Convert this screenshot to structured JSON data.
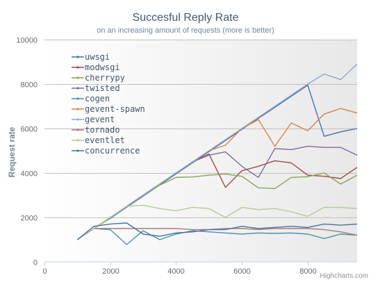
{
  "chart_data": {
    "type": "line",
    "title": "Succesful Reply Rate",
    "subtitle": "on an increasing amount of requests (more is better)",
    "xlabel": "",
    "ylabel": "Request rate",
    "xlim": [
      0,
      9500
    ],
    "ylim": [
      0,
      10000
    ],
    "x_ticks": [
      0,
      2000,
      4000,
      6000,
      8000
    ],
    "y_ticks": [
      0,
      2000,
      4000,
      6000,
      8000,
      10000
    ],
    "grid": "horizontal",
    "legend_position": "top-left",
    "credits": "Highcharts.com",
    "x": [
      1000,
      1500,
      2000,
      2500,
      3000,
      3500,
      4000,
      4500,
      5000,
      5500,
      6000,
      6500,
      7000,
      7500,
      8000,
      8500,
      9000,
      9500
    ],
    "series": [
      {
        "name": "uwsgi",
        "color": "#4572a7",
        "values": [
          1000,
          1500,
          1960,
          2460,
          2960,
          3460,
          3960,
          4460,
          4960,
          5460,
          5960,
          6460,
          6950,
          7450,
          7950,
          5650,
          5850,
          6000
        ]
      },
      {
        "name": "modwsgi",
        "color": "#aa4643",
        "values": [
          1000,
          1500,
          2000,
          2500,
          3000,
          3500,
          4000,
          4500,
          4850,
          3350,
          4100,
          4300,
          4550,
          4450,
          3900,
          3850,
          3750,
          4250
        ]
      },
      {
        "name": "cherrypy",
        "color": "#89a54e",
        "values": [
          1000,
          1500,
          2000,
          2500,
          3000,
          3450,
          3800,
          3820,
          3900,
          3950,
          3850,
          3330,
          3300,
          3800,
          3830,
          4000,
          3500,
          3900
        ]
      },
      {
        "name": "twisted",
        "color": "#80699b",
        "values": [
          1000,
          1500,
          2000,
          2500,
          3000,
          3500,
          4000,
          4500,
          4800,
          4950,
          4300,
          3800,
          5100,
          5050,
          5200,
          5150,
          5150,
          4800
        ]
      },
      {
        "name": "cogen",
        "color": "#3d96ae",
        "values": [
          1000,
          1500,
          1450,
          780,
          1400,
          1000,
          1250,
          1400,
          1350,
          1300,
          1250,
          1300,
          1280,
          1300,
          1250,
          1050,
          1250,
          1200
        ]
      },
      {
        "name": "gevent-spawn",
        "color": "#db843d",
        "values": [
          1000,
          1500,
          2000,
          2500,
          3000,
          3500,
          4000,
          4500,
          5000,
          5250,
          6000,
          6400,
          5200,
          6250,
          5900,
          6650,
          6900,
          6700
        ]
      },
      {
        "name": "gevent",
        "color": "#92a8cd",
        "values": [
          1000,
          1500,
          2000,
          2500,
          3000,
          3500,
          4000,
          4500,
          5000,
          5500,
          6000,
          6500,
          7000,
          7500,
          8000,
          8450,
          8200,
          8900
        ]
      },
      {
        "name": "tornado",
        "color": "#a47d7c",
        "values": [
          1000,
          1500,
          1500,
          1500,
          1500,
          1500,
          1500,
          1450,
          1450,
          1500,
          1500,
          1450,
          1500,
          1500,
          1500,
          1450,
          1350,
          1200
        ]
      },
      {
        "name": "eventlet",
        "color": "#b5ca92",
        "values": [
          1000,
          1500,
          2000,
          2500,
          2550,
          2400,
          2300,
          2450,
          2400,
          2000,
          2450,
          2350,
          2400,
          2250,
          2050,
          2450,
          2450,
          2400
        ]
      },
      {
        "name": "concurrence",
        "color": "#4572a7",
        "values": [
          1000,
          1600,
          1700,
          1750,
          1250,
          1150,
          1300,
          1350,
          1450,
          1450,
          1600,
          1500,
          1550,
          1600,
          1550,
          1700,
          1650,
          1700
        ]
      }
    ]
  }
}
